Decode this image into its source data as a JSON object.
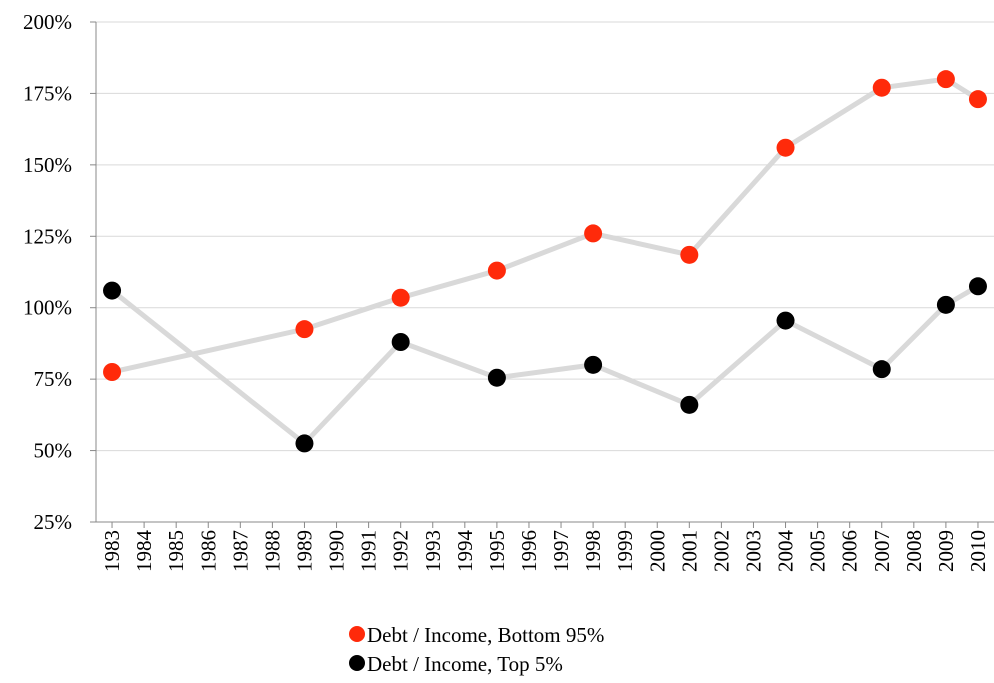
{
  "chart_data": {
    "type": "line",
    "x": [
      1983,
      1989,
      1992,
      1995,
      1998,
      2001,
      2004,
      2007,
      2009,
      2010
    ],
    "xlim": [
      1982.5,
      2010.5
    ],
    "xticks": [
      1983,
      1984,
      1985,
      1986,
      1987,
      1988,
      1989,
      1990,
      1991,
      1992,
      1993,
      1994,
      1995,
      1996,
      1997,
      1998,
      1999,
      2000,
      2001,
      2002,
      2003,
      2004,
      2005,
      2006,
      2007,
      2008,
      2009,
      2010
    ],
    "ylim": [
      25,
      200
    ],
    "yticks": [
      {
        "value": 25,
        "label": "25%"
      },
      {
        "value": 50,
        "label": "50%"
      },
      {
        "value": 75,
        "label": "75%"
      },
      {
        "value": 100,
        "label": "100%"
      },
      {
        "value": 125,
        "label": "125%"
      },
      {
        "value": 150,
        "label": "150%"
      },
      {
        "value": 175,
        "label": "175%"
      },
      {
        "value": 200,
        "label": "200%"
      }
    ],
    "grid": true,
    "line_color": "#d9d9d9",
    "legend": "bottom",
    "series": [
      {
        "name": "Debt / Income, Bottom 95%",
        "color": "#ff2a0a",
        "values": [
          77.5,
          92.5,
          103.5,
          113,
          126,
          118.5,
          156,
          177,
          180,
          173
        ]
      },
      {
        "name": "Debt / Income, Top 5%",
        "color": "#000000",
        "values": [
          106,
          52.5,
          88,
          75.5,
          80,
          66,
          95.5,
          78.5,
          101,
          107.5
        ]
      }
    ]
  }
}
